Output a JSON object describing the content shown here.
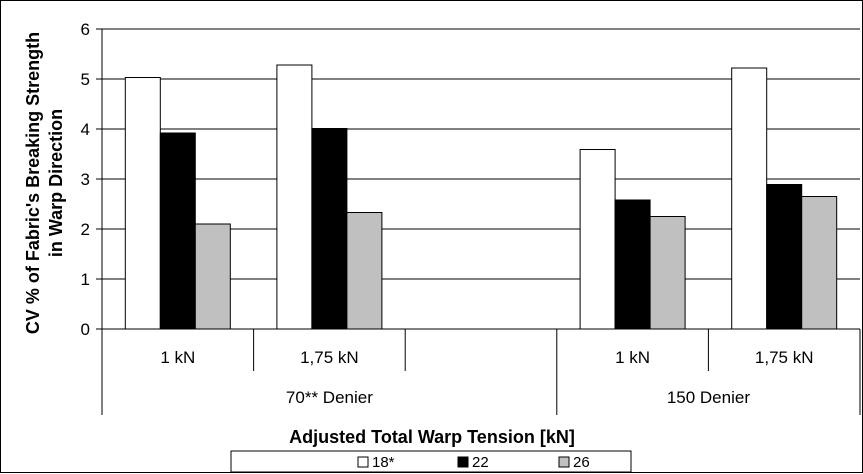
{
  "chart_data": {
    "type": "bar",
    "title": "",
    "ylabel": "CV % of Fabric's Breaking Strength in Warp Direction",
    "ylabel_lines": [
      "CV % of Fabric's Breaking Strength",
      "in Warp Direction"
    ],
    "xlabel": "Adjusted Total Warp Tension [kN]",
    "ylim": [
      0,
      6
    ],
    "yticks": [
      "0",
      "1",
      "2",
      "3",
      "4",
      "5",
      "6"
    ],
    "grid": true,
    "legend_position": "bottom",
    "groups": [
      {
        "label": "70** Denier",
        "categories": [
          "1 kN",
          "1,75 kN"
        ]
      },
      {
        "label": "150 Denier",
        "categories": [
          "1 kN",
          "1,75 kN"
        ]
      }
    ],
    "categories": [
      "1 kN",
      "1,75 kN",
      "",
      "1 kN",
      "1,75 kN"
    ],
    "series": [
      {
        "name": "18*",
        "color": "#ffffff",
        "values": [
          5.03,
          5.28,
          null,
          3.59,
          5.22
        ]
      },
      {
        "name": "22",
        "color": "#000000",
        "values": [
          3.92,
          4.01,
          null,
          2.58,
          2.89
        ]
      },
      {
        "name": "26",
        "color": "#c0c0c0",
        "values": [
          2.1,
          2.33,
          null,
          2.25,
          2.65
        ]
      }
    ]
  }
}
